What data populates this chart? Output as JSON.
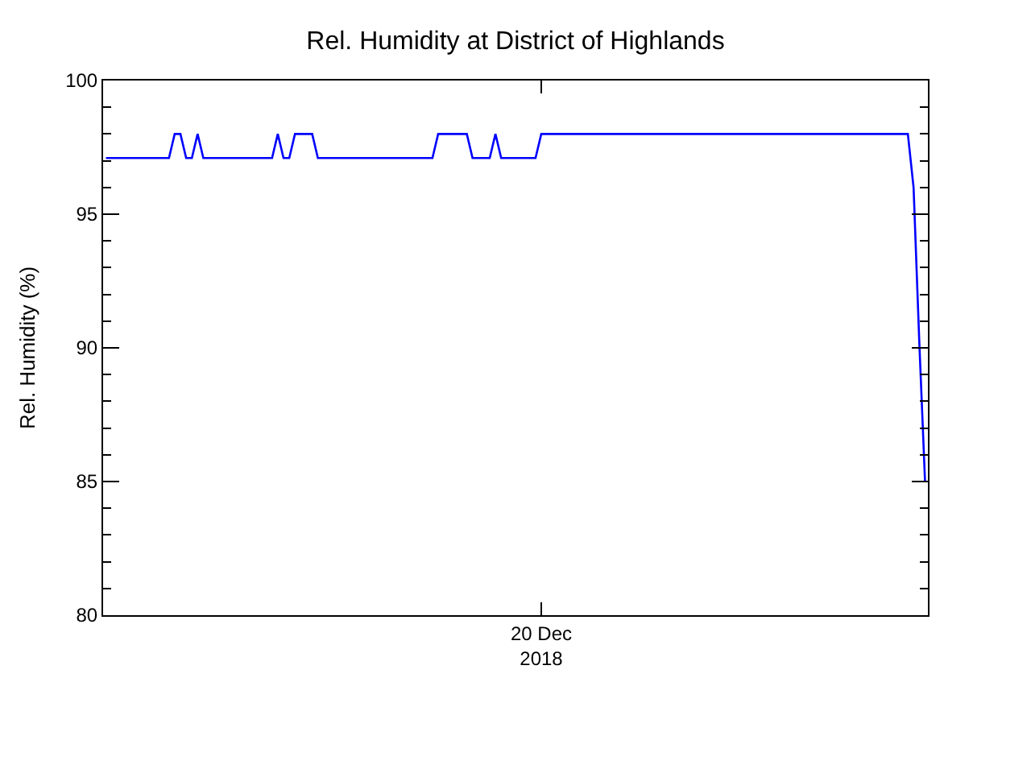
{
  "chart_data": {
    "type": "line",
    "title": "Rel. Humidity at District of Highlands",
    "ylabel": "Rel. Humidity (%)",
    "categories": [
      null,
      null,
      null,
      null,
      null,
      null,
      null,
      null,
      null,
      null,
      null,
      null,
      null,
      null,
      null,
      null,
      null,
      null,
      null,
      null,
      null,
      null,
      null,
      null,
      null,
      null,
      null,
      null,
      null,
      null,
      null,
      null,
      null,
      null,
      null,
      null,
      null,
      null,
      null,
      null,
      null,
      null,
      null,
      null,
      null,
      null,
      null,
      null,
      null,
      null,
      null,
      null,
      null,
      null,
      null,
      null,
      null,
      null,
      null,
      null,
      null,
      null,
      null,
      null,
      null,
      null,
      null,
      null,
      null,
      null,
      null,
      null,
      null,
      null,
      null,
      null,
      "20 Dec\n2018",
      null,
      null,
      null,
      null,
      null,
      null,
      null,
      null,
      null,
      null,
      null,
      null,
      null,
      null,
      null,
      null,
      null,
      null,
      null,
      null,
      null,
      null,
      null,
      null,
      null,
      null,
      null,
      null,
      null,
      null,
      null,
      null,
      null,
      null,
      null,
      null,
      null,
      null,
      null,
      null,
      null,
      null,
      null,
      null,
      null,
      null,
      null,
      null,
      null,
      null,
      null,
      null,
      null,
      null,
      null,
      null,
      null,
      null,
      null,
      null,
      null,
      null,
      null,
      null,
      null,
      null,
      null
    ],
    "series": [
      {
        "color": "#0000ff",
        "values": [
          97.1,
          97.1,
          97.1,
          97.1,
          97.1,
          97.1,
          97.1,
          97.1,
          97.1,
          97.1,
          97.1,
          97.1,
          98.0,
          98.0,
          97.1,
          97.1,
          98.0,
          97.1,
          97.1,
          97.1,
          97.1,
          97.1,
          97.1,
          97.1,
          97.1,
          97.1,
          97.1,
          97.1,
          97.1,
          97.1,
          98.0,
          97.1,
          97.1,
          98.0,
          98.0,
          98.0,
          98.0,
          97.1,
          97.1,
          97.1,
          97.1,
          97.1,
          97.1,
          97.1,
          97.1,
          97.1,
          97.1,
          97.1,
          97.1,
          97.1,
          97.1,
          97.1,
          97.1,
          97.1,
          97.1,
          97.1,
          97.1,
          97.1,
          98.0,
          98.0,
          98.0,
          98.0,
          98.0,
          98.0,
          97.1,
          97.1,
          97.1,
          97.1,
          98.0,
          97.1,
          97.1,
          97.1,
          97.1,
          97.1,
          97.1,
          97.1,
          98.0,
          98.0,
          98.0,
          98.0,
          98.0,
          98.0,
          98.0,
          98.0,
          98.0,
          98.0,
          98.0,
          98.0,
          98.0,
          98.0,
          98.0,
          98.0,
          98.0,
          98.0,
          98.0,
          98.0,
          98.0,
          98.0,
          98.0,
          98.0,
          98.0,
          98.0,
          98.0,
          98.0,
          98.0,
          98.0,
          98.0,
          98.0,
          98.0,
          98.0,
          98.0,
          98.0,
          98.0,
          98.0,
          98.0,
          98.0,
          98.0,
          98.0,
          98.0,
          98.0,
          98.0,
          98.0,
          98.0,
          98.0,
          98.0,
          98.0,
          98.0,
          98.0,
          98.0,
          98.0,
          98.0,
          98.0,
          98.0,
          98.0,
          98.0,
          98.0,
          98.0,
          98.0,
          98.0,
          98.0,
          98.0,
          96.0,
          90.2,
          85.0
        ]
      }
    ],
    "ylim": [
      80,
      100
    ],
    "yticks": [
      {
        "value": 80,
        "label": "80"
      },
      {
        "value": 81,
        "label": null
      },
      {
        "value": 82,
        "label": null
      },
      {
        "value": 83,
        "label": null
      },
      {
        "value": 84,
        "label": null
      },
      {
        "value": 85,
        "label": "85"
      },
      {
        "value": 86,
        "label": null
      },
      {
        "value": 87,
        "label": null
      },
      {
        "value": 88,
        "label": null
      },
      {
        "value": 89,
        "label": null
      },
      {
        "value": 90,
        "label": "90"
      },
      {
        "value": 91,
        "label": null
      },
      {
        "value": 92,
        "label": null
      },
      {
        "value": 93,
        "label": null
      },
      {
        "value": 94,
        "label": null
      },
      {
        "value": 95,
        "label": "95"
      },
      {
        "value": 96,
        "label": null
      },
      {
        "value": 97,
        "label": null
      },
      {
        "value": 98,
        "label": null
      },
      {
        "value": 99,
        "label": null
      },
      {
        "value": 100,
        "label": "100"
      }
    ],
    "marker": "none",
    "line_style": "solid"
  }
}
